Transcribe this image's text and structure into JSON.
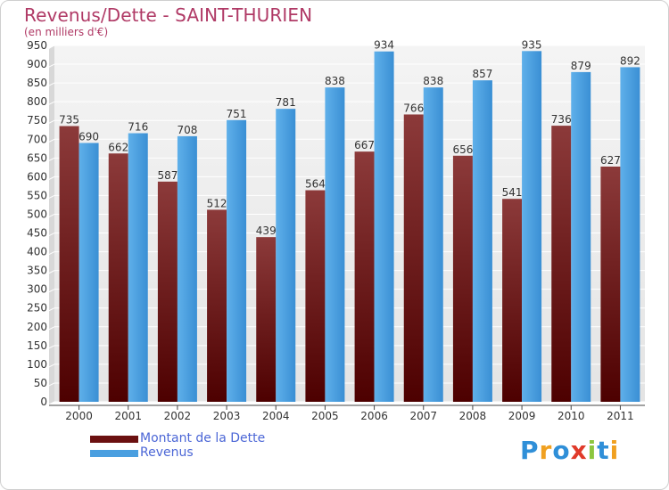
{
  "title": "Revenus/Dette - SAINT-THURIEN",
  "subtitle": "(en milliers d'€)",
  "legend": [
    {
      "label": "Montant de la Dette",
      "color": "#6b1010"
    },
    {
      "label": "Revenus",
      "color": "#4a9fe0"
    }
  ],
  "logo": {
    "text": "Proxiti",
    "letters": [
      {
        "ch": "P",
        "color": "#2f8fd8"
      },
      {
        "ch": "r",
        "color": "#f0a020"
      },
      {
        "ch": "o",
        "color": "#2f8fd8"
      },
      {
        "ch": "x",
        "color": "#e03a2a"
      },
      {
        "ch": "i",
        "color": "#8cc63f"
      },
      {
        "ch": "t",
        "color": "#2f8fd8"
      },
      {
        "ch": "i",
        "color": "#f0a020"
      }
    ]
  },
  "chart_data": {
    "type": "bar",
    "title": "Revenus/Dette - SAINT-THURIEN",
    "ylabel": "(en milliers d'€)",
    "xlabel": "",
    "ylim": [
      0,
      950
    ],
    "ytick_step": 50,
    "grid": true,
    "categories": [
      "2000",
      "2001",
      "2002",
      "2003",
      "2004",
      "2005",
      "2006",
      "2007",
      "2008",
      "2009",
      "2010",
      "2011"
    ],
    "series": [
      {
        "name": "Montant de la Dette",
        "color_top": "#8c3a3a",
        "color_bottom": "#4d0000",
        "values": [
          735,
          662,
          587,
          512,
          439,
          564,
          667,
          766,
          656,
          541,
          736,
          627
        ]
      },
      {
        "name": "Revenus",
        "color_top": "#5fb0ea",
        "color_bottom": "#3a8fd4",
        "values": [
          690,
          716,
          708,
          751,
          781,
          838,
          934,
          838,
          857,
          935,
          879,
          892
        ]
      }
    ]
  }
}
